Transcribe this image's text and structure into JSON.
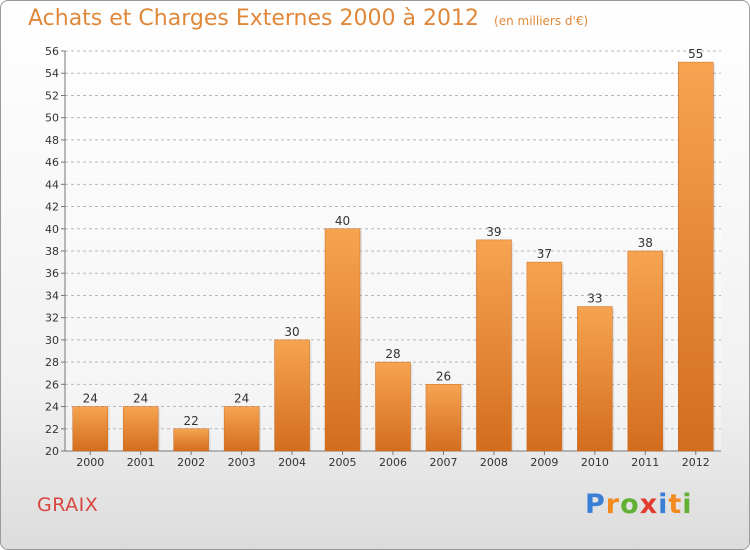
{
  "title": "Achats et Charges Externes 2000 à 2012",
  "unit": "(en milliers d'€)",
  "place": "GRAIX",
  "brand": {
    "letters": [
      "P",
      "r",
      "o",
      "x",
      "i",
      "t",
      "i"
    ],
    "colors": [
      "#3a7fd6",
      "#f28a1f",
      "#63b134",
      "#e23c2f",
      "#3a7fd6",
      "#f28a1f",
      "#63b134"
    ]
  },
  "colors": {
    "bar_top": "#f6a451",
    "bar_bottom": "#d36d1e",
    "title": "#e0883a",
    "place": "#d9453f"
  },
  "chart_data": {
    "type": "bar",
    "title": "Achats et Charges Externes 2000 à 2012",
    "subtitle": "(en milliers d'€)",
    "xlabel": "",
    "ylabel": "",
    "categories": [
      "2000",
      "2001",
      "2002",
      "2003",
      "2004",
      "2005",
      "2006",
      "2007",
      "2008",
      "2009",
      "2010",
      "2011",
      "2012"
    ],
    "values": [
      24,
      24,
      22,
      24,
      30,
      40,
      28,
      26,
      39,
      37,
      33,
      38,
      55
    ],
    "ylim": [
      20,
      56
    ],
    "yticks": [
      20,
      22,
      24,
      26,
      28,
      30,
      32,
      34,
      36,
      38,
      40,
      42,
      44,
      46,
      48,
      50,
      52,
      54,
      56
    ],
    "grid": true,
    "data_labels": true
  }
}
